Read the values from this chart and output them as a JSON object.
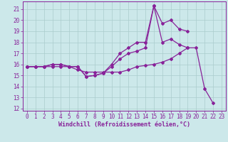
{
  "xlabel": "Windchill (Refroidissement éolien,°C)",
  "bg_color": "#cce8ea",
  "grid_color": "#aacccc",
  "line_color": "#882299",
  "xlim": [
    -0.5,
    23.5
  ],
  "ylim": [
    11.8,
    21.7
  ],
  "yticks": [
    12,
    13,
    14,
    15,
    16,
    17,
    18,
    19,
    20,
    21
  ],
  "xticks": [
    0,
    1,
    2,
    3,
    4,
    5,
    6,
    7,
    8,
    9,
    10,
    11,
    12,
    13,
    14,
    15,
    16,
    17,
    18,
    19,
    20,
    21,
    22,
    23
  ],
  "line1_x": [
    0,
    1,
    2,
    3,
    4,
    5,
    6,
    7,
    8,
    9,
    10,
    11,
    12,
    13,
    14,
    15,
    16,
    17,
    18,
    19,
    20,
    21,
    22
  ],
  "line1_y": [
    15.8,
    15.8,
    15.8,
    15.8,
    15.8,
    15.8,
    15.5,
    15.3,
    15.3,
    15.3,
    15.3,
    15.3,
    15.5,
    15.8,
    15.9,
    16.0,
    16.2,
    16.5,
    17.0,
    17.5,
    17.5,
    13.8,
    12.5
  ],
  "line2_x": [
    0,
    1,
    2,
    3,
    4,
    5,
    6,
    7,
    8,
    9,
    10,
    11,
    12,
    13,
    14,
    15,
    16,
    17,
    18,
    19
  ],
  "line2_y": [
    15.8,
    15.8,
    15.8,
    16.0,
    16.0,
    15.8,
    15.8,
    14.9,
    15.0,
    15.2,
    16.0,
    17.0,
    17.5,
    18.0,
    18.0,
    21.3,
    19.7,
    20.0,
    19.2,
    19.0
  ],
  "line3_x": [
    0,
    1,
    2,
    3,
    4,
    5,
    6,
    7,
    8,
    9,
    10,
    11,
    12,
    13,
    14,
    15,
    16,
    17,
    18,
    19
  ],
  "line3_y": [
    15.8,
    15.8,
    15.8,
    16.0,
    16.0,
    15.8,
    15.8,
    14.9,
    15.0,
    15.2,
    15.8,
    16.5,
    17.0,
    17.2,
    17.5,
    21.3,
    18.0,
    18.3,
    17.8,
    17.5
  ],
  "tick_fontsize": 5.5,
  "xlabel_fontsize": 6.0
}
